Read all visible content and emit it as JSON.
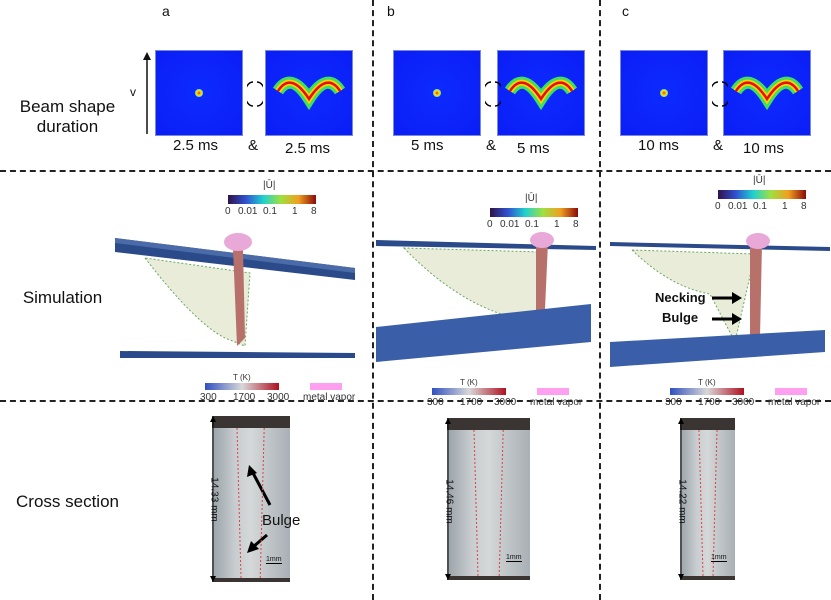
{
  "columns": [
    "a",
    "b",
    "c"
  ],
  "rows": {
    "beam": "Beam shape\nduration",
    "simulation": "Simulation",
    "cross": "Cross section"
  },
  "beam": {
    "velocity_label": "v",
    "joiner": "&",
    "durations": [
      [
        "2.5 ms",
        "2.5 ms"
      ],
      [
        "5 ms",
        "5 ms"
      ],
      [
        "10 ms",
        "10 ms"
      ]
    ]
  },
  "velocity_colorbar": {
    "title": "|Ū|",
    "ticks": [
      "0",
      "0.01",
      "0.1",
      "1",
      "8"
    ]
  },
  "temperature_colorbar": {
    "title": "T (K)",
    "ticks": [
      "300",
      "1700",
      "3000"
    ],
    "vapor_label": "metal vapor",
    "vapor_color": "#ff9ff0"
  },
  "annotations": {
    "necking": "Necking",
    "bulge": "Bulge"
  },
  "cross_section": {
    "depths": [
      "14.33 mm",
      "14.46 mm",
      "14.22 mm"
    ],
    "scale": "1mm"
  }
}
